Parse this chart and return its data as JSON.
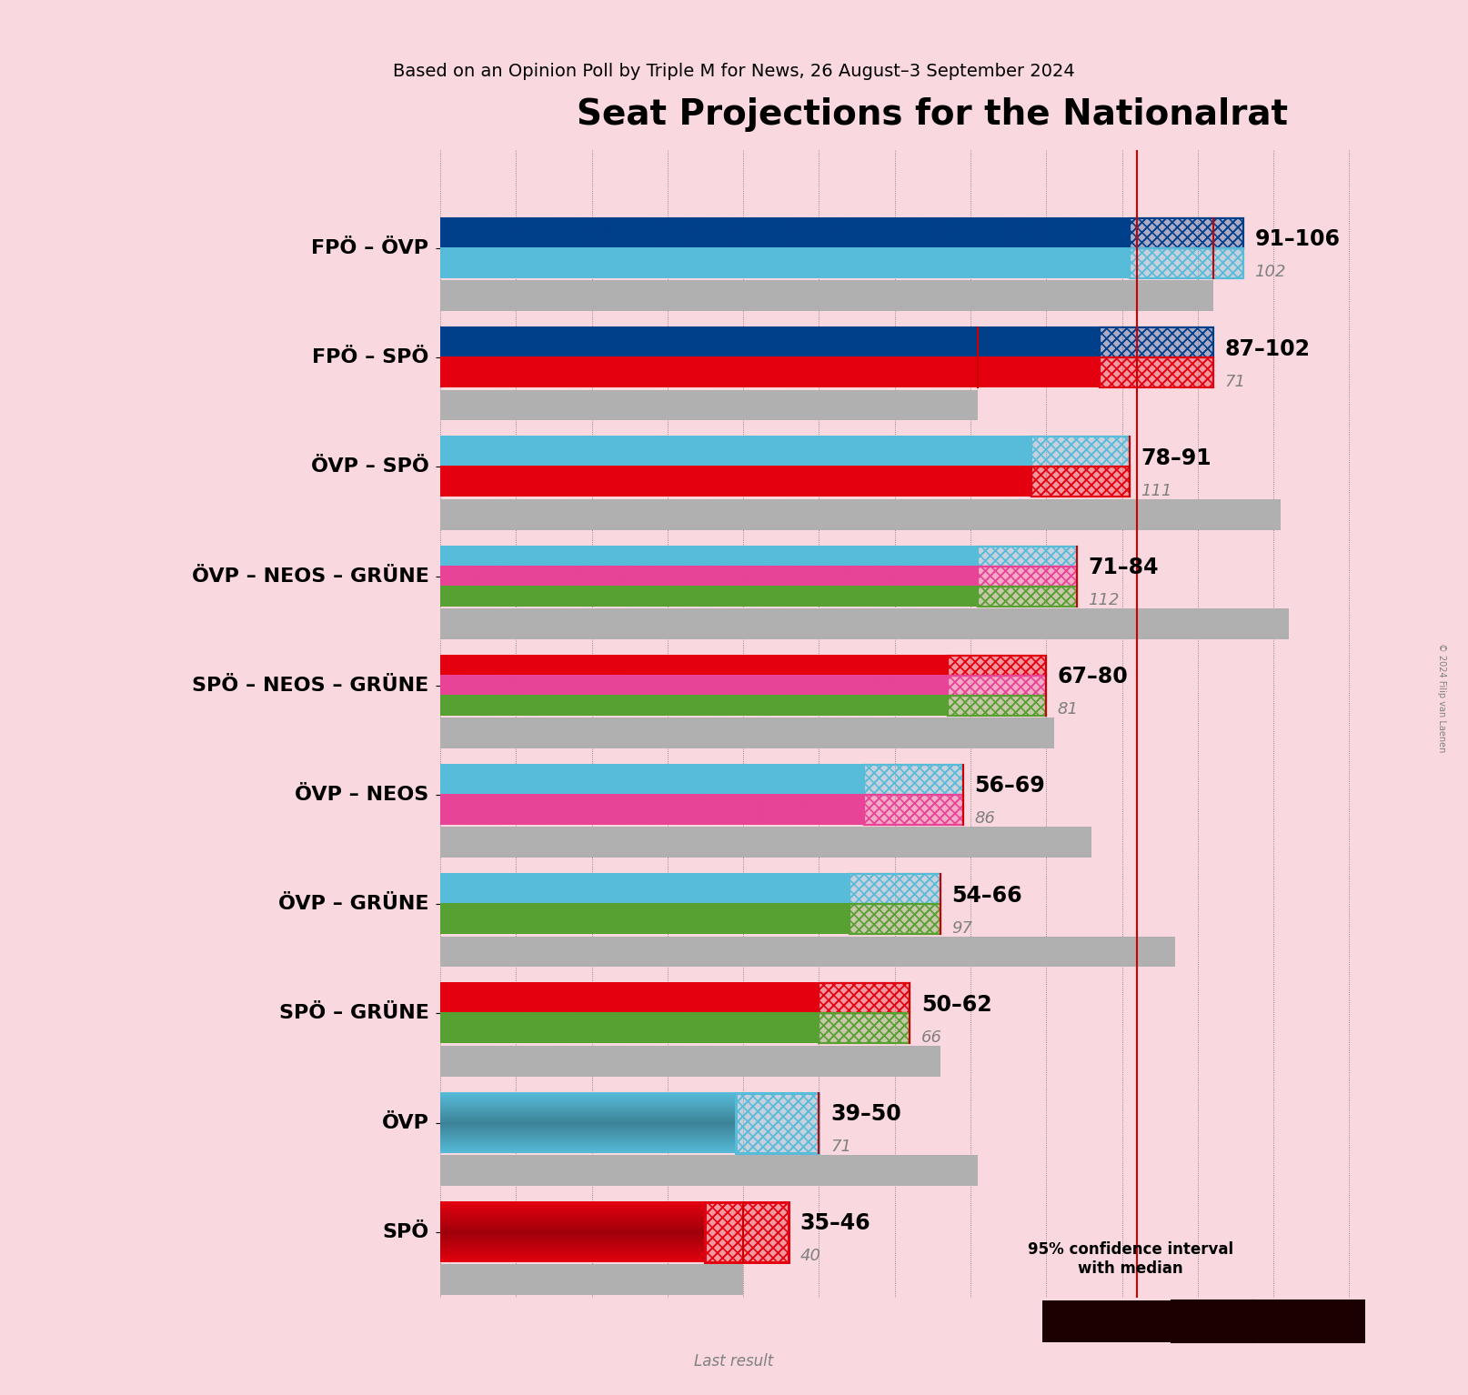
{
  "title": "Seat Projections for the Nationalrat",
  "subtitle": "Based on an Opinion Poll by Triple M for News, 26 August–3 September 2024",
  "copyright": "© 2024 Filip van Laenen",
  "background_color": "#f9d9df",
  "majority_line": 92,
  "x_max": 130,
  "coalitions": [
    {
      "label": "FPÖ – ÖVP",
      "underline": false,
      "ci_low": 91,
      "ci_high": 106,
      "median": 102,
      "last_result": 102,
      "last_result_display": "102",
      "range_label": "91–106",
      "parties": [
        "FPÖ",
        "ÖVP"
      ],
      "colors": [
        "#003f8a",
        "#57bcd9"
      ],
      "ci_color_left": "#003f8a",
      "ci_color_right": "#57bcd9"
    },
    {
      "label": "FPÖ – SPÖ",
      "underline": false,
      "ci_low": 87,
      "ci_high": 102,
      "median": 71,
      "last_result": 71,
      "last_result_display": "71",
      "range_label": "87–102",
      "parties": [
        "FPÖ",
        "SPÖ"
      ],
      "colors": [
        "#003f8a",
        "#e4000f"
      ],
      "ci_color_left": "#003f8a",
      "ci_color_right": "#e4000f"
    },
    {
      "label": "ÖVP – SPÖ",
      "underline": false,
      "ci_low": 78,
      "ci_high": 91,
      "median": 111,
      "last_result": 111,
      "last_result_display": "111",
      "range_label": "78–91",
      "parties": [
        "ÖVP",
        "SPÖ"
      ],
      "colors": [
        "#57bcd9",
        "#e4000f"
      ],
      "ci_color_left": "#57bcd9",
      "ci_color_right": "#e4000f"
    },
    {
      "label": "ÖVP – NEOS – GRÜNE",
      "underline": false,
      "ci_low": 71,
      "ci_high": 84,
      "median": 112,
      "last_result": 112,
      "last_result_display": "112",
      "range_label": "71–84",
      "parties": [
        "ÖVP",
        "NEOS",
        "GRÜNE"
      ],
      "colors": [
        "#57bcd9",
        "#e84396",
        "#57a032"
      ],
      "ci_color_left": "#57bcd9",
      "ci_color_right": "#57a032"
    },
    {
      "label": "SPÖ – NEOS – GRÜNE",
      "underline": false,
      "ci_low": 67,
      "ci_high": 80,
      "median": 81,
      "last_result": 81,
      "last_result_display": "81",
      "range_label": "67–80",
      "parties": [
        "SPÖ",
        "NEOS",
        "GRÜNE"
      ],
      "colors": [
        "#e4000f",
        "#e84396",
        "#57a032"
      ],
      "ci_color_left": "#e4000f",
      "ci_color_right": "#57a032"
    },
    {
      "label": "ÖVP – NEOS",
      "underline": false,
      "ci_low": 56,
      "ci_high": 69,
      "median": 86,
      "last_result": 86,
      "last_result_display": "86",
      "range_label": "56–69",
      "parties": [
        "ÖVP",
        "NEOS"
      ],
      "colors": [
        "#57bcd9",
        "#e84396"
      ],
      "ci_color_left": "#57bcd9",
      "ci_color_right": "#e84396"
    },
    {
      "label": "ÖVP – GRÜNE",
      "underline": true,
      "ci_low": 54,
      "ci_high": 66,
      "median": 97,
      "last_result": 97,
      "last_result_display": "97",
      "range_label": "54–66",
      "parties": [
        "ÖVP",
        "GRÜNE"
      ],
      "colors": [
        "#57bcd9",
        "#57a032"
      ],
      "ci_color_left": "#57bcd9",
      "ci_color_right": "#57a032"
    },
    {
      "label": "SPÖ – GRÜNE",
      "underline": false,
      "ci_low": 50,
      "ci_high": 62,
      "median": 66,
      "last_result": 66,
      "last_result_display": "66",
      "range_label": "50–62",
      "parties": [
        "SPÖ",
        "GRÜNE"
      ],
      "colors": [
        "#e4000f",
        "#57a032"
      ],
      "ci_color_left": "#e4000f",
      "ci_color_right": "#57a032"
    },
    {
      "label": "ÖVP",
      "underline": false,
      "ci_low": 39,
      "ci_high": 50,
      "median": 71,
      "last_result": 71,
      "last_result_display": "71",
      "range_label": "39–50",
      "parties": [
        "ÖVP"
      ],
      "colors": [
        "#57bcd9"
      ],
      "ci_color_left": "#57bcd9",
      "ci_color_right": "#57bcd9"
    },
    {
      "label": "SPÖ",
      "underline": false,
      "ci_low": 35,
      "ci_high": 46,
      "median": 40,
      "last_result": 40,
      "last_result_display": "40",
      "range_label": "35–46",
      "parties": [
        "SPÖ"
      ],
      "colors": [
        "#e4000f"
      ],
      "ci_color_left": "#e4000f",
      "ci_color_right": "#e4000f"
    }
  ]
}
